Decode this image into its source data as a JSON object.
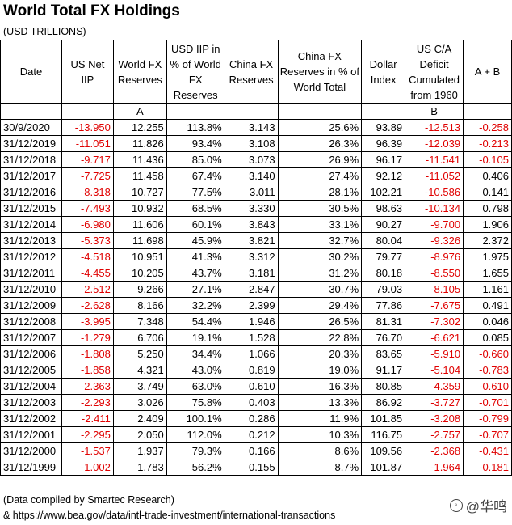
{
  "title": "World Total FX Holdings",
  "subtitle": "(USD TRILLIONS)",
  "columns": [
    "Date",
    "US Net IIP",
    "World FX Reserves",
    "USD IIP in % of World FX Reserves",
    "China FX Reserves",
    "China FX Reserves in % of World Total",
    "Dollar Index",
    "US C/A Deficit Cumulated from 1960",
    "A + B"
  ],
  "column_markers": [
    "",
    "",
    "A",
    "",
    "",
    "",
    "",
    "B",
    ""
  ],
  "rows": [
    [
      "30/9/2020",
      "-13.950",
      "12.255",
      "113.8%",
      "3.143",
      "25.6%",
      "93.89",
      "-12.513",
      "-0.258"
    ],
    [
      "31/12/2019",
      "-11.051",
      "11.826",
      "93.4%",
      "3.108",
      "26.3%",
      "96.39",
      "-12.039",
      "-0.213"
    ],
    [
      "31/12/2018",
      "-9.717",
      "11.436",
      "85.0%",
      "3.073",
      "26.9%",
      "96.17",
      "-11.541",
      "-0.105"
    ],
    [
      "31/12/2017",
      "-7.725",
      "11.458",
      "67.4%",
      "3.140",
      "27.4%",
      "92.12",
      "-11.052",
      "0.406"
    ],
    [
      "31/12/2016",
      "-8.318",
      "10.727",
      "77.5%",
      "3.011",
      "28.1%",
      "102.21",
      "-10.586",
      "0.141"
    ],
    [
      "31/12/2015",
      "-7.493",
      "10.932",
      "68.5%",
      "3.330",
      "30.5%",
      "98.63",
      "-10.134",
      "0.798"
    ],
    [
      "31/12/2014",
      "-6.980",
      "11.606",
      "60.1%",
      "3.843",
      "33.1%",
      "90.27",
      "-9.700",
      "1.906"
    ],
    [
      "31/12/2013",
      "-5.373",
      "11.698",
      "45.9%",
      "3.821",
      "32.7%",
      "80.04",
      "-9.326",
      "2.372"
    ],
    [
      "31/12/2012",
      "-4.518",
      "10.951",
      "41.3%",
      "3.312",
      "30.2%",
      "79.77",
      "-8.976",
      "1.975"
    ],
    [
      "31/12/2011",
      "-4.455",
      "10.205",
      "43.7%",
      "3.181",
      "31.2%",
      "80.18",
      "-8.550",
      "1.655"
    ],
    [
      "31/12/2010",
      "-2.512",
      "9.266",
      "27.1%",
      "2.847",
      "30.7%",
      "79.03",
      "-8.105",
      "1.161"
    ],
    [
      "31/12/2009",
      "-2.628",
      "8.166",
      "32.2%",
      "2.399",
      "29.4%",
      "77.86",
      "-7.675",
      "0.491"
    ],
    [
      "31/12/2008",
      "-3.995",
      "7.348",
      "54.4%",
      "1.946",
      "26.5%",
      "81.31",
      "-7.302",
      "0.046"
    ],
    [
      "31/12/2007",
      "-1.279",
      "6.706",
      "19.1%",
      "1.528",
      "22.8%",
      "76.70",
      "-6.621",
      "0.085"
    ],
    [
      "31/12/2006",
      "-1.808",
      "5.250",
      "34.4%",
      "1.066",
      "20.3%",
      "83.65",
      "-5.910",
      "-0.660"
    ],
    [
      "31/12/2005",
      "-1.858",
      "4.321",
      "43.0%",
      "0.819",
      "19.0%",
      "91.17",
      "-5.104",
      "-0.783"
    ],
    [
      "31/12/2004",
      "-2.363",
      "3.749",
      "63.0%",
      "0.610",
      "16.3%",
      "80.85",
      "-4.359",
      "-0.610"
    ],
    [
      "31/12/2003",
      "-2.293",
      "3.026",
      "75.8%",
      "0.403",
      "13.3%",
      "86.92",
      "-3.727",
      "-0.701"
    ],
    [
      "31/12/2002",
      "-2.411",
      "2.409",
      "100.1%",
      "0.286",
      "11.9%",
      "101.85",
      "-3.208",
      "-0.799"
    ],
    [
      "31/12/2001",
      "-2.295",
      "2.050",
      "112.0%",
      "0.212",
      "10.3%",
      "116.75",
      "-2.757",
      "-0.707"
    ],
    [
      "31/12/2000",
      "-1.537",
      "1.937",
      "79.3%",
      "0.166",
      "8.6%",
      "109.56",
      "-2.368",
      "-0.431"
    ],
    [
      "31/12/1999",
      "-1.002",
      "1.783",
      "56.2%",
      "0.155",
      "8.7%",
      "101.87",
      "-1.964",
      "-0.181"
    ]
  ],
  "negative_color": "#e00000",
  "footnote_1": "(Data compiled by Smartec Research)",
  "footnote_2": "& https://www.bea.gov/data/intl-trade-investment/international-transactions",
  "watermark": {
    "text": "@华鸣",
    "icon": "share-circle-icon"
  }
}
